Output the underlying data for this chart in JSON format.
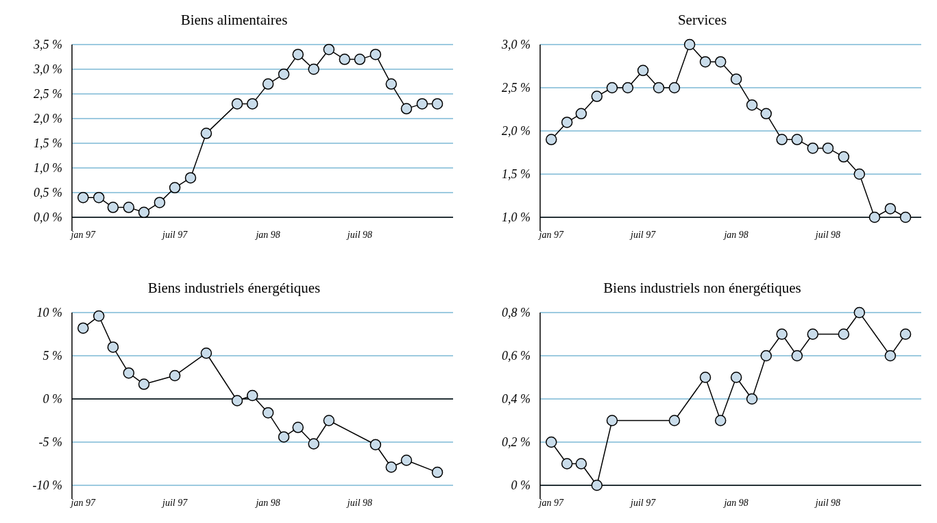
{
  "chart_data": [
    {
      "type": "line",
      "title": "Biens alimentaires",
      "x": [
        "1997-01",
        "1997-02",
        "1997-03",
        "1997-04",
        "1997-05",
        "1997-06",
        "1997-07",
        "1997-08",
        "1997-09",
        "1997-11",
        "1997-12",
        "1998-01",
        "1998-02",
        "1998-03",
        "1998-04",
        "1998-05",
        "1998-06",
        "1998-07",
        "1998-08",
        "1998-09",
        "1998-10",
        "1998-11",
        "1998-12"
      ],
      "series": [
        {
          "color": "#000000",
          "values": [
            0.4,
            0.4,
            0.2,
            0.2,
            0.1,
            0.3,
            0.6,
            0.8,
            1.7,
            2.3,
            2.3,
            2.7,
            2.9,
            3.3,
            3.0,
            3.4,
            3.2,
            3.2,
            3.3,
            2.7,
            2.2,
            2.3,
            2.3
          ]
        }
      ],
      "xlim": [
        "1996-12-10",
        "1999-01-01"
      ],
      "xticks": [
        {
          "value": "1997-01",
          "label": "jan 97"
        },
        {
          "value": "1997-07",
          "label": "juil 97"
        },
        {
          "value": "1998-01",
          "label": "jan 98"
        },
        {
          "value": "1998-07",
          "label": "juil 98"
        }
      ],
      "ylim": [
        0,
        3.5
      ],
      "yticks": [
        {
          "value": 0,
          "label": "0,0 %"
        },
        {
          "value": 0.5,
          "label": "0,5 %"
        },
        {
          "value": 1,
          "label": "1,0 %"
        },
        {
          "value": 1.5,
          "label": "1,5 %"
        },
        {
          "value": 2,
          "label": "2,0 %"
        },
        {
          "value": 2.5,
          "label": "2,5 %"
        },
        {
          "value": 3,
          "label": "3,0 %"
        },
        {
          "value": 3.5,
          "label": "3,5 %"
        }
      ],
      "grid": "y",
      "marker": "circle",
      "line_style": "solid"
    },
    {
      "type": "line",
      "title": "Services",
      "x": [
        "1997-01",
        "1997-02",
        "1997-03",
        "1997-04",
        "1997-05",
        "1997-06",
        "1997-07",
        "1997-08",
        "1997-09",
        "1997-10",
        "1997-11",
        "1997-12",
        "1998-01",
        "1998-02",
        "1998-03",
        "1998-04",
        "1998-05",
        "1998-06",
        "1998-07",
        "1998-08",
        "1998-09",
        "1998-10",
        "1998-11",
        "1998-12"
      ],
      "series": [
        {
          "color": "#000000",
          "values": [
            1.9,
            2.1,
            2.2,
            2.4,
            2.5,
            2.5,
            2.7,
            2.5,
            2.5,
            3.0,
            2.8,
            2.8,
            2.6,
            2.3,
            2.2,
            1.9,
            1.9,
            1.8,
            1.8,
            1.7,
            1.5,
            1.0,
            1.1,
            1.0
          ]
        }
      ],
      "xlim": [
        "1996-12-10",
        "1999-01-01"
      ],
      "xticks": [
        {
          "value": "1997-01",
          "label": "jan 97"
        },
        {
          "value": "1997-07",
          "label": "juil 97"
        },
        {
          "value": "1998-01",
          "label": "jan 98"
        },
        {
          "value": "1998-07",
          "label": "juil 98"
        }
      ],
      "ylim": [
        1.0,
        3.0
      ],
      "yticks": [
        {
          "value": 1,
          "label": "1,0 %"
        },
        {
          "value": 1.5,
          "label": "1,5 %"
        },
        {
          "value": 2,
          "label": "2,0 %"
        },
        {
          "value": 2.5,
          "label": "2,5 %"
        },
        {
          "value": 3,
          "label": "3,0 %"
        }
      ],
      "grid": "y",
      "marker": "circle",
      "line_style": "solid"
    },
    {
      "type": "line",
      "title": "Biens industriels énergétiques",
      "x": [
        "1997-01",
        "1997-02",
        "1997-03",
        "1997-04",
        "1997-05",
        "1997-07",
        "1997-09",
        "1997-11",
        "1997-12",
        "1998-01",
        "1998-02",
        "1998-03",
        "1998-04",
        "1998-05",
        "1998-08",
        "1998-09",
        "1998-10",
        "1998-12"
      ],
      "series": [
        {
          "color": "#000000",
          "values": [
            8.2,
            9.6,
            6.0,
            3.0,
            1.7,
            2.7,
            5.3,
            -0.2,
            0.4,
            -1.6,
            -4.4,
            -3.3,
            -5.2,
            -2.5,
            -5.3,
            -7.9,
            -7.1,
            -8.5
          ]
        }
      ],
      "xlim": [
        "1996-12-10",
        "1999-01-01"
      ],
      "xticks": [
        {
          "value": "1997-01",
          "label": "jan 97"
        },
        {
          "value": "1997-07",
          "label": "juil 97"
        },
        {
          "value": "1998-01",
          "label": "jan 98"
        },
        {
          "value": "1998-07",
          "label": "juil 98"
        }
      ],
      "ylim": [
        -10,
        10
      ],
      "yticks": [
        {
          "value": -10,
          "label": "-10 %"
        },
        {
          "value": -5,
          "label": "-5 %"
        },
        {
          "value": 0,
          "label": "0 %"
        },
        {
          "value": 5,
          "label": "5 %"
        },
        {
          "value": 10,
          "label": "10 %"
        }
      ],
      "grid": "y",
      "marker": "circle",
      "line_style": "solid"
    },
    {
      "type": "line",
      "title": "Biens industriels non énergétiques",
      "x": [
        "1997-01",
        "1997-02",
        "1997-03",
        "1997-04",
        "1997-05",
        "1997-09",
        "1997-11",
        "1997-12",
        "1998-01",
        "1998-02",
        "1998-03",
        "1998-04",
        "1998-05",
        "1998-06",
        "1998-08",
        "1998-09",
        "1998-11",
        "1998-12"
      ],
      "series": [
        {
          "color": "#000000",
          "values": [
            0.2,
            0.1,
            0.1,
            0,
            0.3,
            0.3,
            0.5,
            0.3,
            0.5,
            0.4,
            0.6,
            0.7,
            0.6,
            0.7,
            0.7,
            0.8,
            0.6,
            0.7
          ]
        }
      ],
      "xlim": [
        "1996-12-10",
        "1999-01-01"
      ],
      "xticks": [
        {
          "value": "1997-01",
          "label": "jan 97"
        },
        {
          "value": "1997-07",
          "label": "juil 97"
        },
        {
          "value": "1998-01",
          "label": "jan 98"
        },
        {
          "value": "1998-07",
          "label": "juil 98"
        }
      ],
      "ylim": [
        0,
        0.8
      ],
      "yticks": [
        {
          "value": 0,
          "label": "0 %"
        },
        {
          "value": 0.2,
          "label": "0,2 %"
        },
        {
          "value": 0.4,
          "label": "0,4 %"
        },
        {
          "value": 0.6,
          "label": "0,6 %"
        },
        {
          "value": 0.8,
          "label": "0,8 %"
        }
      ],
      "grid": "y",
      "marker": "circle",
      "line_style": "solid"
    }
  ]
}
